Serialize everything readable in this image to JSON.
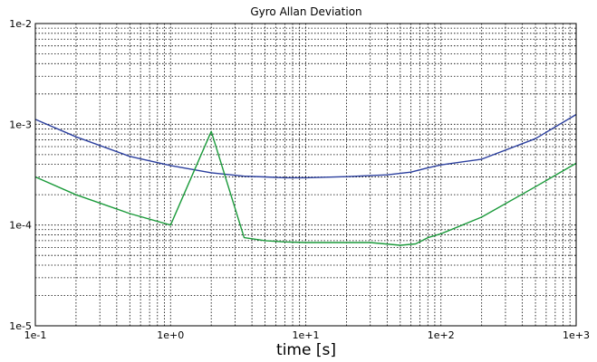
{
  "chart_data": {
    "type": "line",
    "title": "Gyro Allan Deviation",
    "xlabel": "time [s]",
    "ylabel": "",
    "xscale": "log",
    "yscale": "log",
    "xlim": [
      0.1,
      1000
    ],
    "ylim": [
      1e-05,
      0.01
    ],
    "grid": true,
    "x_tick_labels": [
      "1e-1",
      "1e+0",
      "1e+1",
      "1e+2",
      "1e+3"
    ],
    "y_tick_labels": [
      "1e-5",
      "1e-4",
      "1e-3",
      "1e-2"
    ],
    "series": [
      {
        "color": "#2b3f9e",
        "points": [
          [
            0.1,
            0.00112
          ],
          [
            0.2,
            0.00075
          ],
          [
            0.5,
            0.00048
          ],
          [
            1,
            0.00039
          ],
          [
            2,
            0.00033
          ],
          [
            3.5,
            0.000305
          ],
          [
            5,
            0.0003
          ],
          [
            7,
            0.000295
          ],
          [
            10,
            0.000295
          ],
          [
            20,
            0.000302
          ],
          [
            40,
            0.000315
          ],
          [
            60,
            0.000335
          ],
          [
            80,
            0.00037
          ],
          [
            100,
            0.000395
          ],
          [
            200,
            0.00045
          ],
          [
            500,
            0.00072
          ],
          [
            1000,
            0.00125
          ]
        ]
      },
      {
        "color": "#1a9a3a",
        "points": [
          [
            0.1,
            0.0003
          ],
          [
            0.2,
            0.0002
          ],
          [
            0.5,
            0.00013
          ],
          [
            1,
            0.0001
          ],
          [
            2,
            0.00085
          ],
          [
            3.5,
            7.5e-05
          ],
          [
            5,
            7e-05
          ],
          [
            7,
            6.8e-05
          ],
          [
            10,
            6.7e-05
          ],
          [
            30,
            6.7e-05
          ],
          [
            50,
            6.3e-05
          ],
          [
            65,
            6.5e-05
          ],
          [
            80,
            7.5e-05
          ],
          [
            100,
            8.2e-05
          ],
          [
            200,
            0.00012
          ],
          [
            500,
            0.00024
          ],
          [
            1000,
            0.00041
          ]
        ]
      }
    ]
  }
}
